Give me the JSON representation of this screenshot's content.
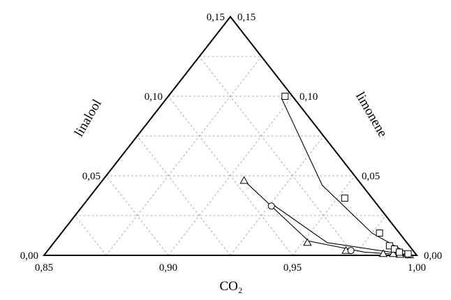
{
  "chart_data": {
    "type": "scatter",
    "subtype": "ternary",
    "title": "",
    "axes": {
      "bottom": {
        "label": "CO₂",
        "range": [
          0.85,
          1.0
        ],
        "ticks": [
          "0,85",
          "0,90",
          "0,95",
          "1,00"
        ]
      },
      "left": {
        "label": "linalool",
        "range": [
          0.0,
          0.15
        ],
        "ticks": [
          "0,00",
          "0,05",
          "0,10",
          "0,15"
        ]
      },
      "right": {
        "label": "limonene",
        "range": [
          0.0,
          0.15
        ],
        "ticks": [
          "0,00",
          "0,05",
          "0,10",
          "0,15"
        ]
      }
    },
    "grid": true,
    "legend": "none",
    "series": [
      {
        "marker": "triangle",
        "points": [
          {
            "co2": 0.907,
            "linalool": 0.047
          },
          {
            "co2": 0.952,
            "linalool": 0.008
          },
          {
            "co2": 0.97,
            "linalool": 0.003
          },
          {
            "co2": 0.986,
            "linalool": 0.001
          },
          {
            "co2": 0.99,
            "linalool": 0.001
          },
          {
            "co2": 0.993,
            "linalool": 0.0005
          },
          {
            "co2": 0.997,
            "linalool": 0.0002
          }
        ],
        "fit": [
          {
            "co2": 0.907,
            "linalool": 0.047
          },
          {
            "co2": 0.952,
            "linalool": 0.009
          },
          {
            "co2": 0.978,
            "linalool": 0.002
          },
          {
            "co2": 0.998,
            "linalool": 0.0
          }
        ]
      },
      {
        "marker": "circle",
        "points": [
          {
            "co2": 0.926,
            "linalool": 0.031
          },
          {
            "co2": 0.972,
            "linalool": 0.003
          },
          {
            "co2": 0.996,
            "linalool": 0.0003
          }
        ],
        "fit": [
          {
            "co2": 0.926,
            "linalool": 0.032
          },
          {
            "co2": 0.96,
            "linalool": 0.008
          },
          {
            "co2": 0.998,
            "linalool": 0.0
          }
        ]
      },
      {
        "marker": "square",
        "points": [
          {
            "co2": 0.897,
            "linalool": 0.1
          },
          {
            "co2": 0.953,
            "linalool": 0.036
          },
          {
            "co2": 0.978,
            "linalool": 0.014
          },
          {
            "co2": 0.986,
            "linalool": 0.006
          },
          {
            "co2": 0.989,
            "linalool": 0.004
          },
          {
            "co2": 0.992,
            "linalool": 0.002
          },
          {
            "co2": 0.996,
            "linalool": 0.001
          }
        ],
        "fit": [
          {
            "co2": 0.896,
            "linalool": 0.099
          },
          {
            "co2": 0.94,
            "linalool": 0.044
          },
          {
            "co2": 0.975,
            "linalool": 0.014
          },
          {
            "co2": 0.998,
            "linalool": 0.0
          }
        ]
      }
    ]
  }
}
